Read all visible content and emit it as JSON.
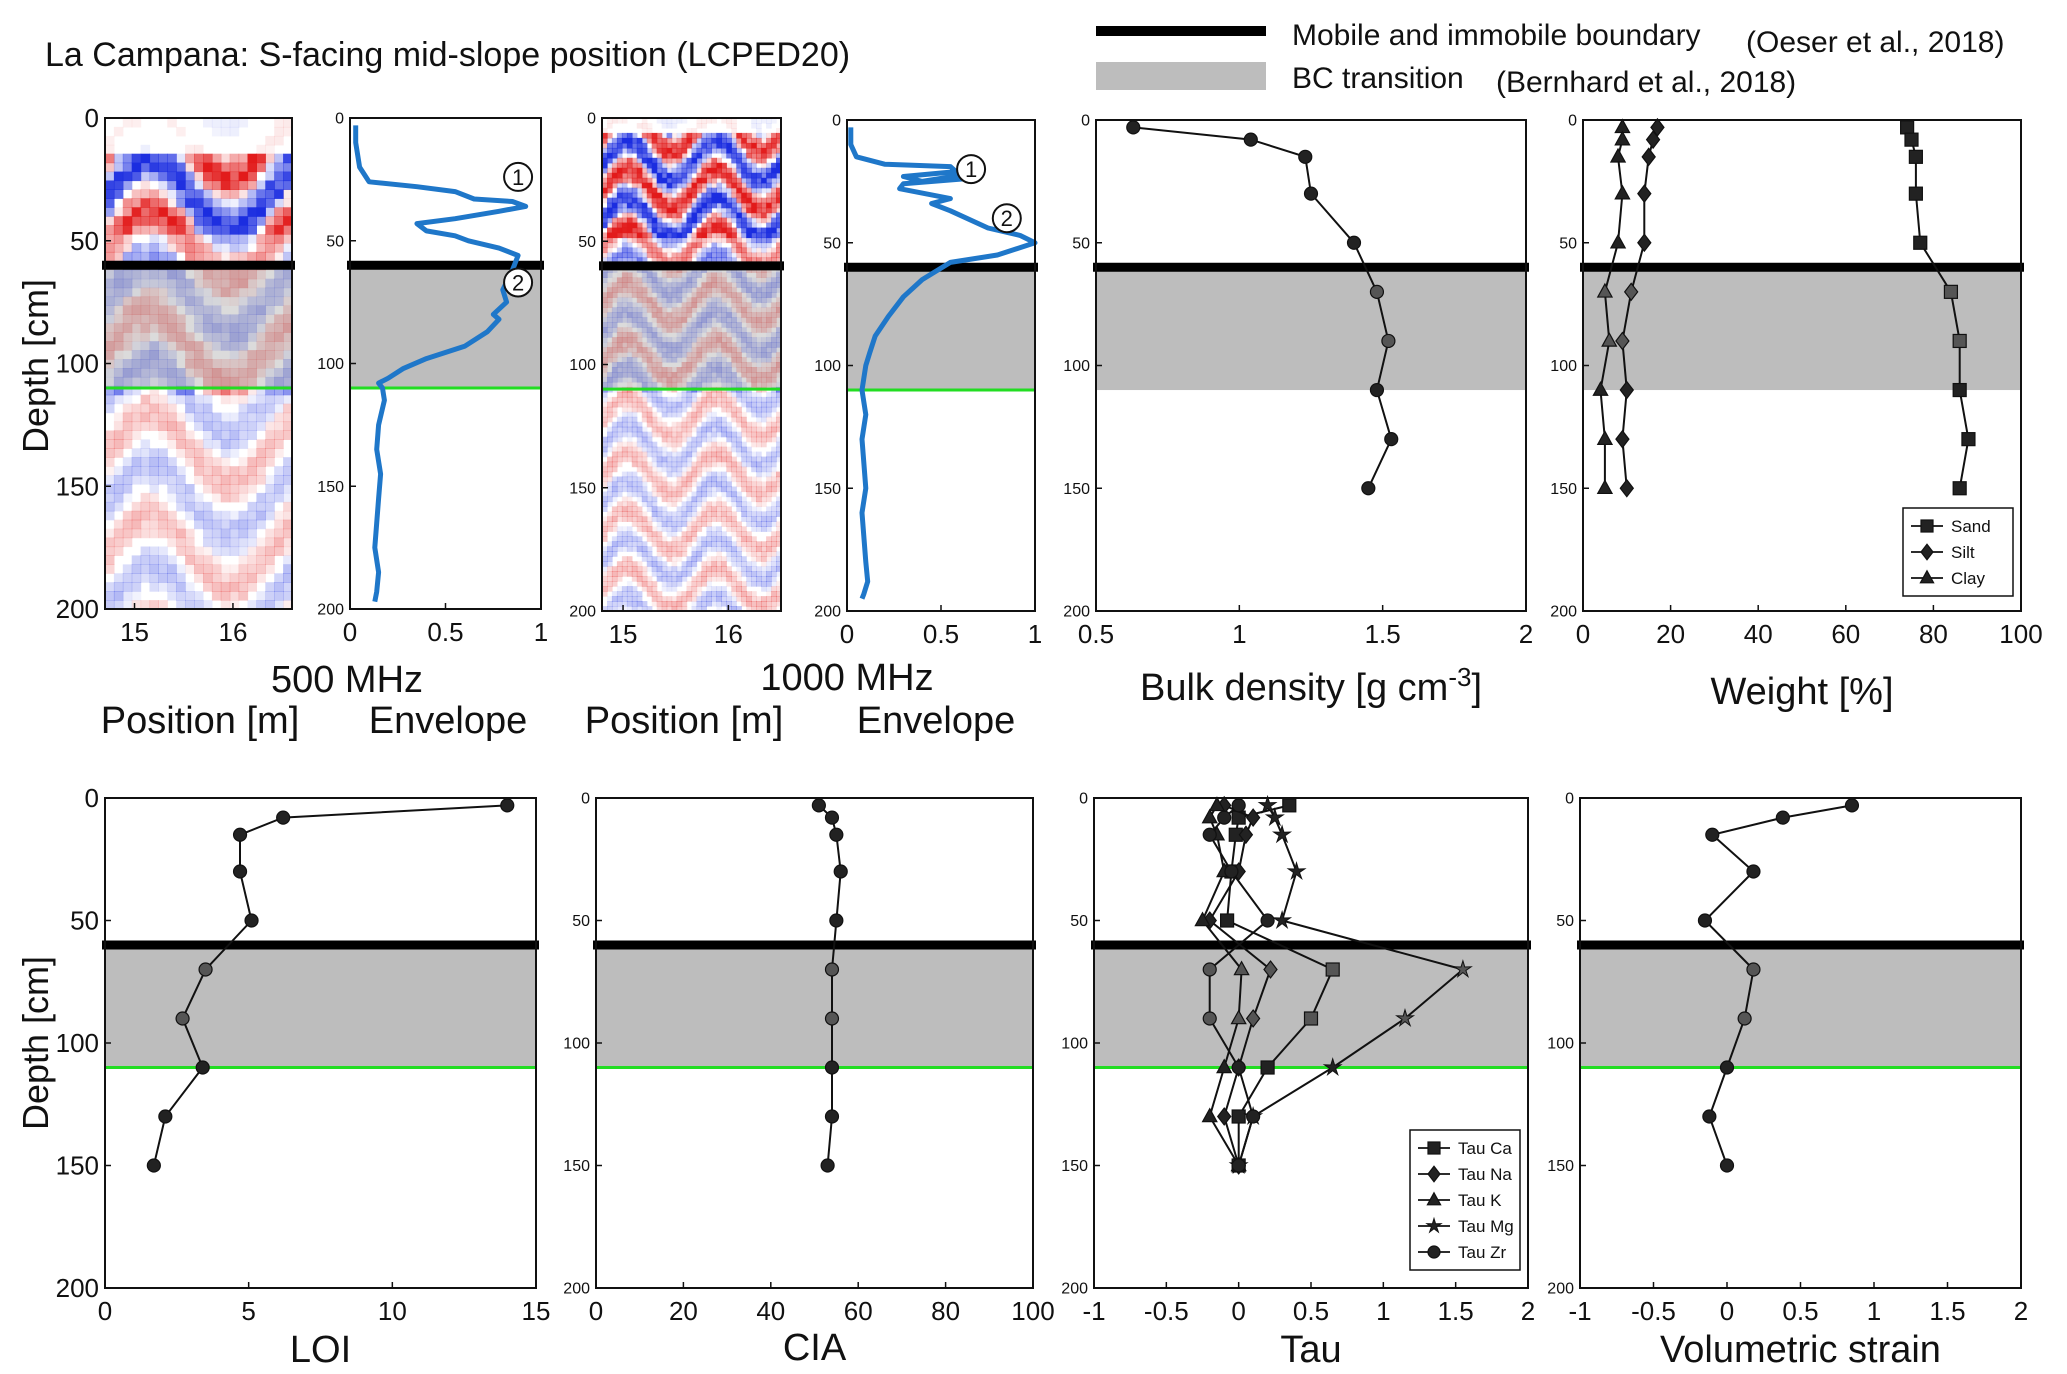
{
  "title": "La Campana: S-facing mid-slope position (LCPED20)",
  "legend_top": {
    "boundary_label": "Mobile and immobile boundary",
    "boundary_ref": "(Oeser et al., 2018)",
    "bc_label": "BC transition",
    "bc_ref": "(Bernhard et al., 2018)"
  },
  "depth_axis_label": "Depth [cm]",
  "freq_labels": [
    "500 MHz",
    "1000 MHz"
  ],
  "position_label": "Position [m]",
  "envelope_label": "Envelope",
  "reflector_markers": [
    "1",
    "2"
  ],
  "colors": {
    "boundary": "#000000",
    "bc_band": "#bdbdbd",
    "green_line": "#22dd22",
    "envelope": "#1f77c9",
    "marker": "#111111",
    "radar_pos": "#e21b1b",
    "radar_neg": "#1b2de0"
  },
  "chart_data": [
    {
      "id": "gpr500",
      "type": "heatmap",
      "xlabel": "Position [m]",
      "x_ticks": [
        "15",
        "16"
      ],
      "xlim": [
        14.7,
        16.6
      ],
      "ylim": [
        0,
        200
      ],
      "y_ticks": [
        "0",
        "50",
        "100",
        "150",
        "200"
      ],
      "boundary_depth": 60,
      "bc_transition": [
        60,
        110
      ],
      "green_line_depth": 110
    },
    {
      "id": "env500",
      "type": "line",
      "xlabel": "Envelope",
      "xlim": [
        0,
        1
      ],
      "x_ticks": [
        "0",
        "0.5",
        "1"
      ],
      "ylim": [
        0,
        200
      ],
      "y_ticks": [
        "0",
        "50",
        "100",
        "150",
        "200"
      ],
      "x": [
        0.03,
        0.03,
        0.05,
        0.1,
        0.35,
        0.55,
        0.65,
        0.85,
        0.92,
        0.78,
        0.55,
        0.35,
        0.4,
        0.55,
        0.62,
        0.78,
        0.88,
        0.85,
        0.8,
        0.82,
        0.75,
        0.78,
        0.72,
        0.6,
        0.4,
        0.28,
        0.2,
        0.15,
        0.17,
        0.18,
        0.15,
        0.14,
        0.16,
        0.15,
        0.14,
        0.13,
        0.15,
        0.14,
        0.13
      ],
      "y": [
        3,
        10,
        20,
        26,
        28,
        30,
        33,
        34,
        36,
        38,
        41,
        43,
        46,
        48,
        50,
        53,
        56,
        62,
        70,
        75,
        80,
        82,
        87,
        93,
        98,
        102,
        106,
        108,
        110,
        115,
        125,
        135,
        145,
        155,
        165,
        175,
        185,
        193,
        197
      ],
      "markers": [
        {
          "label": "1",
          "x": 0.88,
          "y": 24
        },
        {
          "label": "2",
          "x": 0.88,
          "y": 67
        }
      ],
      "boundary_depth": 60,
      "bc_transition": [
        60,
        110
      ],
      "green_line_depth": 110
    },
    {
      "id": "gpr1000",
      "type": "heatmap",
      "xlabel": "Position [m]",
      "x_ticks": [
        "15",
        "16"
      ],
      "xlim": [
        14.8,
        16.5
      ],
      "ylim": [
        0,
        200
      ],
      "y_ticks": [
        "0",
        "50",
        "100",
        "150",
        "200"
      ],
      "boundary_depth": 60,
      "bc_transition": [
        60,
        110
      ],
      "green_line_depth": 110
    },
    {
      "id": "env1000",
      "type": "line",
      "xlabel": "Envelope",
      "xlim": [
        0,
        1
      ],
      "x_ticks": [
        "0",
        "0.5",
        "1"
      ],
      "ylim": [
        0,
        200
      ],
      "y_ticks": [
        "0",
        "50",
        "100",
        "150",
        "200"
      ],
      "x": [
        0.02,
        0.02,
        0.05,
        0.2,
        0.55,
        0.58,
        0.3,
        0.4,
        0.65,
        0.62,
        0.3,
        0.28,
        0.55,
        0.45,
        0.55,
        0.75,
        0.92,
        1.0,
        0.8,
        0.55,
        0.4,
        0.3,
        0.22,
        0.15,
        0.12,
        0.1,
        0.09,
        0.08,
        0.1,
        0.08,
        0.09,
        0.1,
        0.08,
        0.09,
        0.1,
        0.11,
        0.09,
        0.08
      ],
      "y": [
        3,
        10,
        15,
        18,
        19,
        21,
        23,
        25,
        22,
        24,
        26,
        28,
        32,
        34,
        37,
        44,
        47,
        50,
        55,
        58,
        65,
        72,
        80,
        88,
        95,
        100,
        105,
        110,
        120,
        130,
        140,
        150,
        160,
        170,
        180,
        188,
        193,
        195
      ],
      "markers": [
        {
          "label": "1",
          "x": 0.66,
          "y": 20
        },
        {
          "label": "2",
          "x": 0.85,
          "y": 40
        }
      ],
      "boundary_depth": 60,
      "bc_transition": [
        60,
        110
      ],
      "green_line_depth": 110
    },
    {
      "id": "bulk",
      "type": "line",
      "xlabel": "Bulk density [g cm⁻³]",
      "xlim": [
        0.5,
        2
      ],
      "x_ticks": [
        "0.5",
        "1",
        "1.5",
        "2"
      ],
      "ylim": [
        0,
        200
      ],
      "y_ticks": [
        "0",
        "50",
        "100",
        "150",
        "200"
      ],
      "series": [
        {
          "marker": "circle",
          "x": [
            0.63,
            1.04,
            1.23,
            1.25,
            1.4,
            1.48,
            1.52,
            1.48,
            1.53,
            1.45
          ],
          "y": [
            3,
            8,
            15,
            30,
            50,
            70,
            90,
            110,
            130,
            150
          ]
        }
      ],
      "boundary_depth": 60,
      "bc_transition": [
        60,
        110
      ]
    },
    {
      "id": "weight",
      "type": "line",
      "xlabel": "Weight [%]",
      "xlim": [
        0,
        100
      ],
      "x_ticks": [
        "0",
        "20",
        "40",
        "60",
        "80",
        "100"
      ],
      "ylim": [
        0,
        200
      ],
      "y_ticks": [
        "0",
        "50",
        "100",
        "150",
        "200"
      ],
      "series": [
        {
          "name": "Sand",
          "marker": "square",
          "x": [
            74,
            75,
            76,
            76,
            77,
            84,
            86,
            86,
            88,
            86
          ],
          "y": [
            3,
            8,
            15,
            30,
            50,
            70,
            90,
            110,
            130,
            150
          ]
        },
        {
          "name": "Silt",
          "marker": "diamond",
          "x": [
            17,
            16,
            15,
            14,
            14,
            11,
            9,
            10,
            9,
            10
          ],
          "y": [
            3,
            8,
            15,
            30,
            50,
            70,
            90,
            110,
            130,
            150
          ]
        },
        {
          "name": "Clay",
          "marker": "triangle",
          "x": [
            9,
            9,
            8,
            9,
            8,
            5,
            6,
            4,
            5,
            5
          ],
          "y": [
            3,
            8,
            15,
            30,
            50,
            70,
            90,
            110,
            130,
            150
          ]
        }
      ],
      "legend": [
        "Sand",
        "Silt",
        "Clay"
      ],
      "boundary_depth": 60,
      "bc_transition": [
        60,
        110
      ]
    },
    {
      "id": "loi",
      "type": "line",
      "xlabel": "LOI",
      "xlim": [
        0,
        15
      ],
      "x_ticks": [
        "0",
        "5",
        "10",
        "15"
      ],
      "ylim": [
        0,
        200
      ],
      "y_ticks": [
        "0",
        "50",
        "100",
        "150",
        "200"
      ],
      "series": [
        {
          "marker": "circle",
          "x": [
            14,
            6.2,
            4.7,
            4.7,
            5.1,
            3.5,
            2.7,
            3.4,
            2.1,
            1.7
          ],
          "y": [
            3,
            8,
            15,
            30,
            50,
            70,
            90,
            110,
            130,
            150
          ]
        }
      ],
      "boundary_depth": 60,
      "bc_transition": [
        60,
        110
      ],
      "green_line_depth": 110
    },
    {
      "id": "cia",
      "type": "line",
      "xlabel": "CIA",
      "xlim": [
        0,
        100
      ],
      "x_ticks": [
        "0",
        "20",
        "40",
        "60",
        "80",
        "100"
      ],
      "ylim": [
        0,
        200
      ],
      "y_ticks": [
        "0",
        "50",
        "100",
        "150",
        "200"
      ],
      "series": [
        {
          "marker": "circle",
          "x": [
            51,
            54,
            55,
            56,
            55,
            54,
            54,
            54,
            54,
            53
          ],
          "y": [
            3,
            8,
            15,
            30,
            50,
            70,
            90,
            110,
            130,
            150
          ]
        }
      ],
      "boundary_depth": 60,
      "bc_transition": [
        60,
        110
      ],
      "green_line_depth": 110
    },
    {
      "id": "tau",
      "type": "line",
      "xlabel": "Tau",
      "xlim": [
        -1,
        2
      ],
      "x_ticks": [
        "-1",
        "-0.5",
        "0",
        "0.5",
        "1",
        "1.5",
        "2"
      ],
      "ylim": [
        0,
        200
      ],
      "y_ticks": [
        "0",
        "50",
        "100",
        "150",
        "200"
      ],
      "series": [
        {
          "name": "Tau Ca",
          "marker": "square",
          "x": [
            0.35,
            0,
            -0.02,
            -0.05,
            -0.08,
            0.65,
            0.5,
            0.2,
            0,
            0
          ],
          "y": [
            3,
            8,
            15,
            30,
            50,
            70,
            90,
            110,
            130,
            150
          ]
        },
        {
          "name": "Tau Na",
          "marker": "diamond",
          "x": [
            -0.1,
            0.1,
            0.05,
            0,
            -0.2,
            0.22,
            0.1,
            0,
            -0.1,
            0
          ],
          "y": [
            3,
            8,
            15,
            30,
            50,
            70,
            90,
            110,
            130,
            150
          ]
        },
        {
          "name": "Tau K",
          "marker": "triangle",
          "x": [
            -0.15,
            -0.2,
            -0.15,
            -0.1,
            -0.25,
            0.02,
            0,
            -0.1,
            -0.2,
            0
          ],
          "y": [
            3,
            8,
            15,
            30,
            50,
            70,
            90,
            110,
            130,
            150
          ]
        },
        {
          "name": "Tau Mg",
          "marker": "star",
          "x": [
            0.2,
            0.25,
            0.3,
            0.4,
            0.3,
            1.55,
            1.15,
            0.65,
            0.1,
            0
          ],
          "y": [
            3,
            8,
            15,
            30,
            50,
            70,
            90,
            110,
            130,
            150
          ]
        },
        {
          "name": "Tau Zr",
          "marker": "circle",
          "x": [
            0,
            -0.1,
            -0.2,
            -0.05,
            0.2,
            -0.2,
            -0.2,
            0,
            0.1,
            0
          ],
          "y": [
            3,
            8,
            15,
            30,
            50,
            70,
            90,
            110,
            130,
            150
          ]
        }
      ],
      "legend": [
        "Tau Ca",
        "Tau Na",
        "Tau K",
        "Tau Mg",
        "Tau Zr"
      ],
      "boundary_depth": 60,
      "bc_transition": [
        60,
        110
      ],
      "green_line_depth": 110
    },
    {
      "id": "strain",
      "type": "line",
      "xlabel": "Volumetric strain",
      "xlim": [
        -1,
        2
      ],
      "x_ticks": [
        "-1",
        "-0.5",
        "0",
        "0.5",
        "1",
        "1.5",
        "2"
      ],
      "ylim": [
        0,
        200
      ],
      "y_ticks": [
        "0",
        "50",
        "100",
        "150",
        "200"
      ],
      "series": [
        {
          "marker": "circle",
          "x": [
            0.85,
            0.38,
            -0.1,
            0.18,
            -0.15,
            0.18,
            0.12,
            0,
            -0.12,
            0
          ],
          "y": [
            3,
            8,
            15,
            30,
            50,
            70,
            90,
            110,
            130,
            150
          ]
        }
      ],
      "boundary_depth": 60,
      "bc_transition": [
        60,
        110
      ],
      "green_line_depth": 110
    }
  ]
}
